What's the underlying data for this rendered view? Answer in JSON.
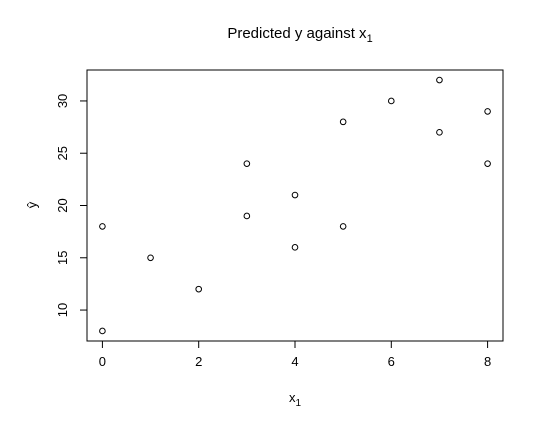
{
  "chart_data": {
    "type": "scatter",
    "title": "Predicted y against x",
    "title_subscript": "1",
    "x_label": "x",
    "x_label_subscript": "1",
    "y_label": "ŷ",
    "x": [
      0,
      0,
      1,
      2,
      3,
      3,
      4,
      4,
      5,
      5,
      6,
      7,
      7,
      8,
      8
    ],
    "y": [
      18,
      8,
      15,
      12,
      24,
      19,
      21,
      16,
      28,
      18,
      30,
      32,
      27,
      29,
      24
    ],
    "color": "#000000",
    "xlim": [
      -0.32,
      8.32
    ],
    "xticks": [
      0,
      2,
      4,
      6,
      8
    ],
    "ylim": [
      7.04,
      32.96
    ],
    "yticks": [
      10,
      15,
      20,
      25,
      30
    ],
    "grid": false
  }
}
